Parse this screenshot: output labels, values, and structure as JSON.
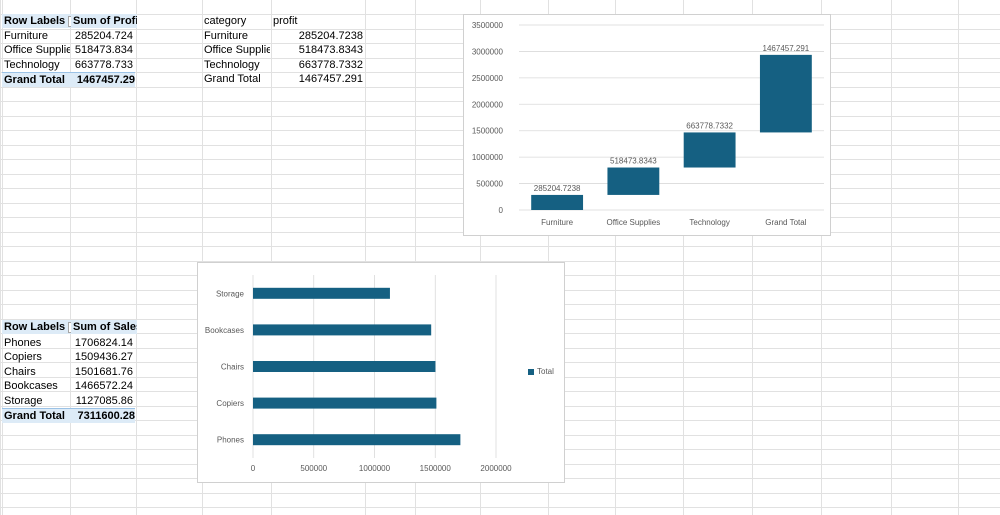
{
  "pivot_profit": {
    "header_labels": "Row Labels",
    "header_value": "Sum of Profit",
    "rows": [
      {
        "label": "Furniture",
        "value": "285204.724"
      },
      {
        "label": "Office Supplies",
        "value": "518473.834"
      },
      {
        "label": "Technology",
        "value": "663778.733"
      }
    ],
    "total_label": "Grand Total",
    "total_value": "1467457.29"
  },
  "source_table": {
    "header_category": "category",
    "header_profit": "profit",
    "rows": [
      {
        "category": "Furniture",
        "profit": "285204.7238"
      },
      {
        "category": "Office Supplies",
        "profit": "518473.8343"
      },
      {
        "category": "Technology",
        "profit": "663778.7332"
      },
      {
        "category": "Grand Total",
        "profit": "1467457.291"
      }
    ]
  },
  "pivot_sales": {
    "header_labels": "Row Labels",
    "header_value": "Sum of Sales",
    "rows": [
      {
        "label": "Phones",
        "value": "1706824.14"
      },
      {
        "label": "Copiers",
        "value": "1509436.27"
      },
      {
        "label": "Chairs",
        "value": "1501681.76"
      },
      {
        "label": "Bookcases",
        "value": "1466572.24"
      },
      {
        "label": "Storage",
        "value": "1127085.86"
      }
    ],
    "total_label": "Grand Total",
    "total_value": "7311600.28"
  },
  "colors": {
    "bar": "#156082",
    "gridline": "#d9d9d9",
    "header_fill": "#ddebf7",
    "axis_text": "#595959"
  },
  "chart_data": [
    {
      "type": "bar",
      "subtype": "waterfall",
      "categories": [
        "Furniture",
        "Office Supplies",
        "Technology",
        "Grand Total"
      ],
      "values": [
        285204.7238,
        518473.8343,
        663778.7332,
        1467457.291
      ],
      "data_labels": [
        "285204.7238",
        "518473.8343",
        "663778.7332",
        "1467457.291"
      ],
      "ylim": [
        0,
        3500000
      ],
      "yticks": [
        "3500000",
        "3000000",
        "2500000",
        "2000000",
        "1500000",
        "1000000",
        "500000",
        "0"
      ],
      "grid": true
    },
    {
      "type": "bar",
      "orientation": "horizontal",
      "categories": [
        "Storage",
        "Bookcases",
        "Chairs",
        "Copiers",
        "Phones"
      ],
      "series": [
        {
          "name": "Total",
          "values": [
            1127085.86,
            1466572.24,
            1501681.76,
            1509436.27,
            1706824.14
          ]
        }
      ],
      "xlim": [
        0,
        2000000
      ],
      "xticks": [
        "0",
        "500000",
        "1000000",
        "1500000",
        "2000000"
      ],
      "legend": "right",
      "grid": true
    }
  ]
}
